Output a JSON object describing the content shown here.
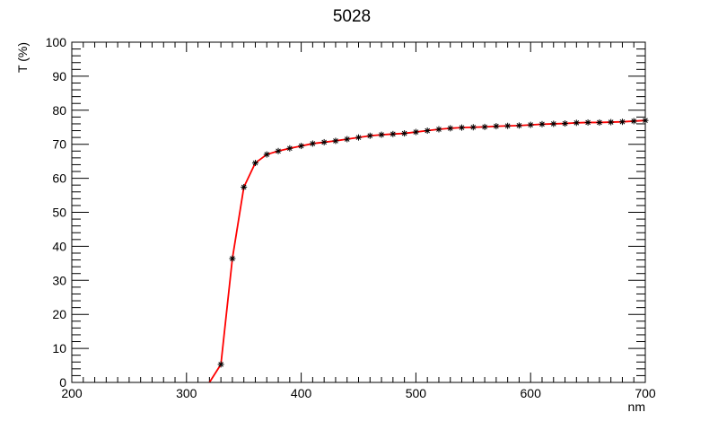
{
  "chart_data": {
    "type": "line",
    "title": "5028",
    "xlabel": "nm",
    "ylabel": "T (%)",
    "xlim": [
      200,
      700
    ],
    "ylim": [
      0,
      100
    ],
    "x_ticks": [
      200,
      300,
      400,
      500,
      600,
      700
    ],
    "y_ticks": [
      0,
      10,
      20,
      30,
      40,
      50,
      60,
      70,
      80,
      90,
      100
    ],
    "grid": false,
    "legend": "none",
    "series": [
      {
        "x": [
          320,
          330,
          340,
          350,
          360,
          370,
          380,
          390,
          400,
          410,
          420,
          430,
          440,
          450,
          460,
          470,
          480,
          490,
          500,
          510,
          520,
          530,
          540,
          550,
          560,
          570,
          580,
          590,
          600,
          610,
          620,
          630,
          640,
          650,
          660,
          670,
          680,
          690,
          700
        ],
        "y": [
          0,
          5.3,
          36.4,
          57.4,
          64.5,
          67.0,
          68.0,
          68.8,
          69.5,
          70.2,
          70.6,
          71.0,
          71.5,
          72.0,
          72.5,
          72.8,
          73.0,
          73.2,
          73.6,
          74.0,
          74.4,
          74.7,
          74.9,
          75.0,
          75.1,
          75.3,
          75.4,
          75.5,
          75.7,
          75.9,
          76.0,
          76.1,
          76.3,
          76.4,
          76.4,
          76.5,
          76.6,
          76.8,
          77.0
        ],
        "line_color": "#ff0000",
        "marker_color": "#000000",
        "marker": "asterisk"
      }
    ]
  }
}
